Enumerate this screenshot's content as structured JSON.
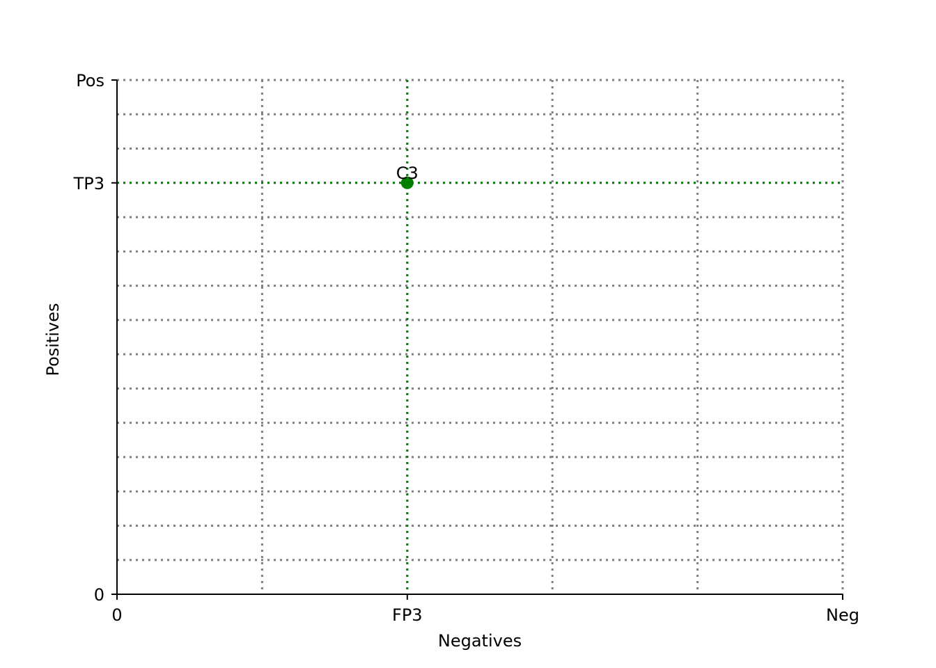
{
  "chart_data": {
    "type": "scatter",
    "title": "",
    "xlabel": "Negatives",
    "ylabel": "Positives",
    "xlim": [
      0,
      5
    ],
    "ylim": [
      0,
      15
    ],
    "grid": true,
    "grid_color": "#808080",
    "highlight_color": "#008000",
    "x_gridlines": [
      1,
      2,
      3,
      4,
      5
    ],
    "y_gridlines": [
      1,
      2,
      3,
      4,
      5,
      6,
      7,
      8,
      9,
      10,
      11,
      12,
      13,
      14,
      15
    ],
    "x_ticks": [
      {
        "value": 0,
        "label": "0"
      },
      {
        "value": 2,
        "label": "FP3"
      },
      {
        "value": 5,
        "label": "Neg"
      }
    ],
    "y_ticks": [
      {
        "value": 0,
        "label": "0"
      },
      {
        "value": 12,
        "label": "TP3"
      },
      {
        "value": 15,
        "label": "Pos"
      }
    ],
    "points": [
      {
        "x": 2,
        "y": 12,
        "label": "C3",
        "color": "#008000"
      }
    ]
  }
}
